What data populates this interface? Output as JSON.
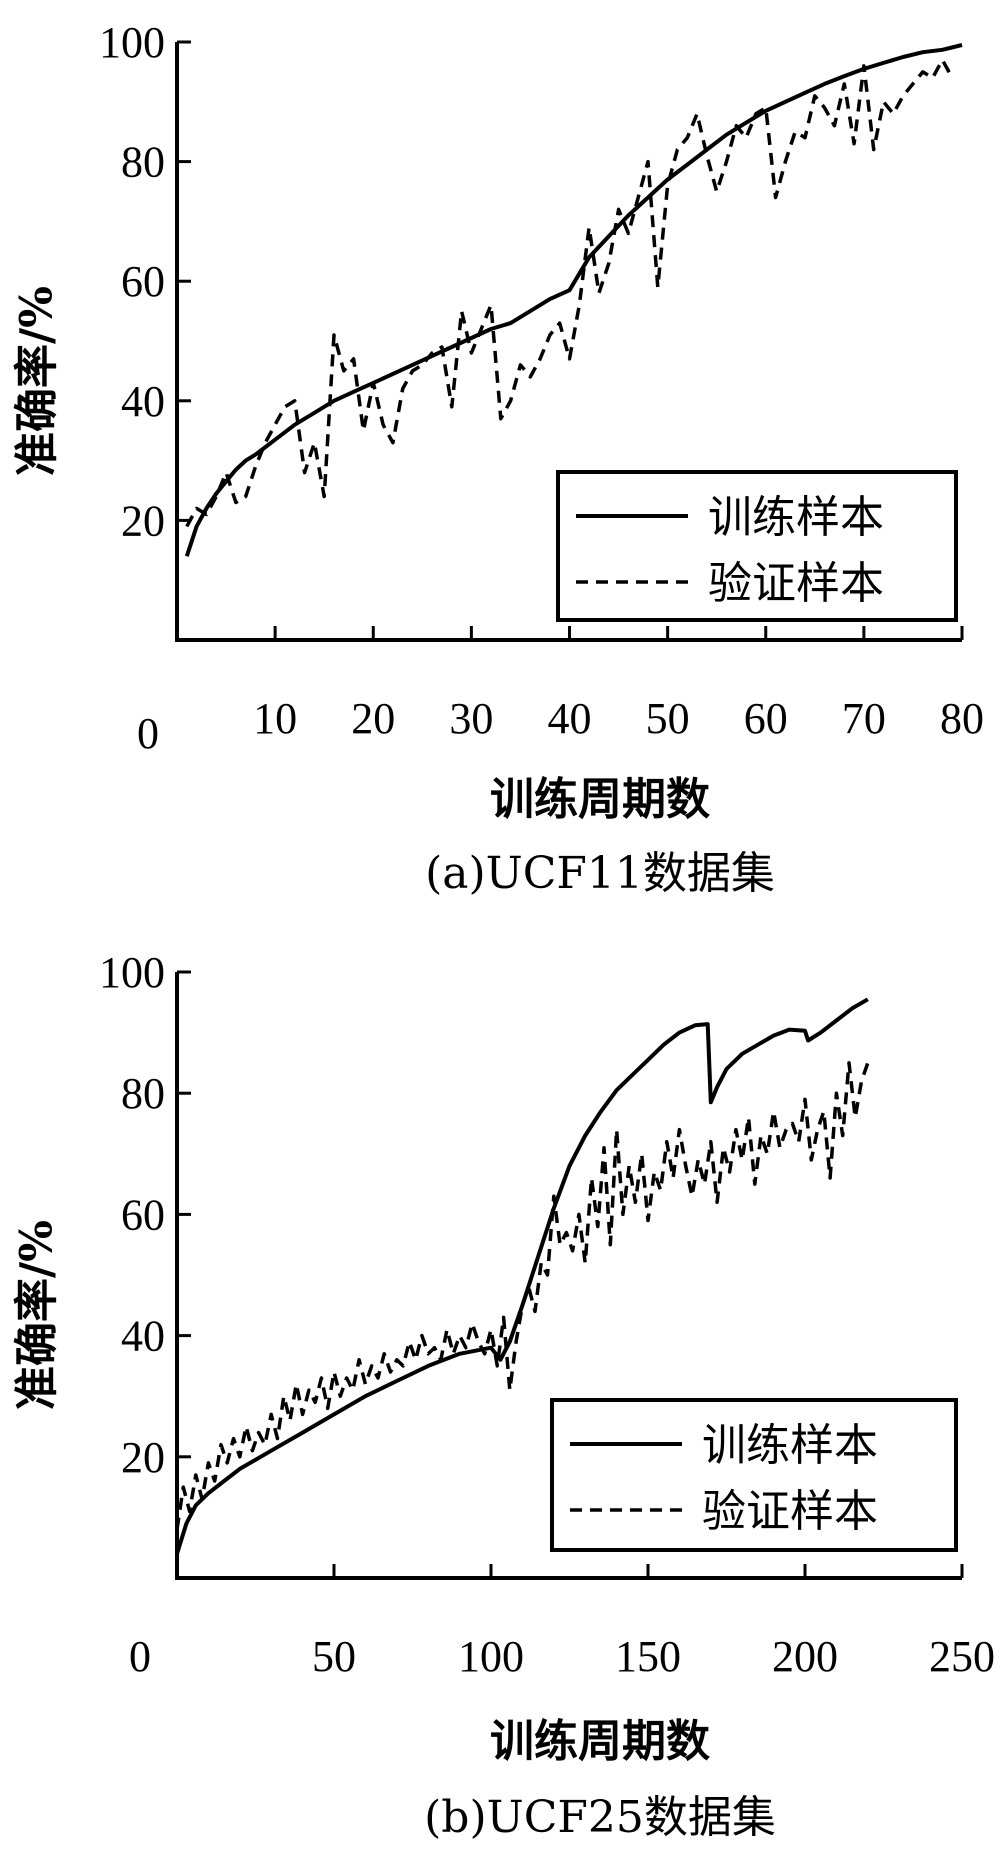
{
  "chart_data": [
    {
      "type": "line",
      "caption": "(a)UCF11数据集",
      "xlabel": "训练周期数",
      "ylabel": "准确率/%",
      "xlim": [
        0,
        80
      ],
      "ylim": [
        0,
        100
      ],
      "xticks": [
        10,
        20,
        30,
        40,
        50,
        60,
        70,
        80
      ],
      "xtick_labels": [
        "10",
        "20",
        "30",
        "40",
        "50",
        "60",
        "70",
        "80"
      ],
      "yticks": [
        20,
        40,
        60,
        80,
        100
      ],
      "ytick_labels": [
        "20",
        "40",
        "60",
        "80",
        "100"
      ],
      "origin_label": "0",
      "legend_position": "lower-right",
      "series": [
        {
          "name": "训练样本",
          "style": "solid",
          "x": [
            1,
            2,
            3,
            4,
            5,
            6,
            7,
            8,
            10,
            12,
            14,
            16,
            18,
            20,
            22,
            24,
            26,
            28,
            30,
            32,
            34,
            36,
            38,
            40,
            42,
            44,
            46,
            48,
            50,
            52,
            54,
            56,
            58,
            60,
            62,
            64,
            66,
            68,
            70,
            72,
            74,
            76,
            78,
            80
          ],
          "values": [
            14,
            19,
            22,
            24.5,
            26.5,
            28.5,
            30,
            31,
            33.5,
            36,
            38,
            40,
            41.5,
            43,
            44.5,
            46,
            47.5,
            49,
            50.5,
            52,
            53,
            55,
            57,
            58.5,
            64,
            67.5,
            71,
            74,
            77,
            79.5,
            82,
            84.5,
            86.5,
            88.5,
            90,
            91.5,
            93,
            94.3,
            95.5,
            96.5,
            97.5,
            98.3,
            98.7,
            99.5
          ]
        },
        {
          "name": "验证样本",
          "style": "dashed",
          "x": [
            1,
            2,
            3,
            4,
            5,
            6,
            7,
            8,
            9,
            10,
            11,
            12,
            13,
            14,
            15,
            16,
            17,
            18,
            19,
            20,
            21,
            22,
            23,
            24,
            25,
            26,
            27,
            28,
            29,
            30,
            31,
            32,
            33,
            34,
            35,
            36,
            37,
            38,
            39,
            40,
            41,
            42,
            43,
            44,
            45,
            46,
            47,
            48,
            49,
            50,
            51,
            52,
            53,
            54,
            55,
            56,
            57,
            58,
            59,
            60,
            61,
            62,
            63,
            64,
            65,
            66,
            67,
            68,
            69,
            70,
            71,
            72,
            73,
            74,
            75,
            76,
            77,
            78,
            79
          ],
          "values": [
            19,
            22,
            21,
            24,
            28,
            23,
            24,
            29,
            33,
            36,
            39,
            40,
            28,
            33,
            24,
            51,
            45,
            47,
            35,
            43,
            36,
            33,
            42,
            45,
            46,
            48,
            49,
            39,
            55,
            48,
            52,
            56,
            37,
            40,
            46,
            44,
            47,
            51,
            53,
            47,
            56,
            69,
            58,
            63,
            72,
            68,
            74,
            80,
            59,
            76,
            82,
            84,
            88,
            81,
            75,
            80,
            86,
            84,
            88,
            89,
            74,
            80,
            85,
            84,
            91,
            89,
            86,
            93,
            83,
            96,
            82,
            90,
            88,
            91,
            93,
            95,
            94,
            97,
            94
          ]
        }
      ]
    },
    {
      "type": "line",
      "caption": "(b)UCF25数据集",
      "xlabel": "训练周期数",
      "ylabel": "准确率/%",
      "xlim": [
        0,
        250
      ],
      "ylim": [
        0,
        100
      ],
      "xticks": [
        50,
        100,
        150,
        200,
        250
      ],
      "xtick_labels": [
        "50",
        "100",
        "150",
        "200",
        "250"
      ],
      "yticks": [
        20,
        40,
        60,
        80,
        100
      ],
      "ytick_labels": [
        "20",
        "40",
        "60",
        "80",
        "100"
      ],
      "origin_label": "0",
      "legend_position": "lower-right",
      "series": [
        {
          "name": "训练样本",
          "style": "solid",
          "x": [
            0,
            3,
            6,
            10,
            15,
            20,
            30,
            40,
            50,
            60,
            70,
            80,
            90,
            100,
            103,
            106,
            110,
            115,
            120,
            125,
            130,
            135,
            140,
            145,
            150,
            155,
            160,
            165,
            169,
            170,
            172,
            175,
            180,
            185,
            190,
            195,
            200,
            201,
            205,
            210,
            215,
            220
          ],
          "values": [
            4,
            9,
            12,
            14,
            16,
            18,
            21,
            24,
            27,
            30,
            32.5,
            35,
            37,
            38,
            36,
            39,
            45,
            53,
            61,
            68,
            73,
            77,
            80.5,
            83,
            85.5,
            88,
            90,
            91.2,
            91.4,
            78.5,
            81,
            84,
            86.5,
            88,
            89.5,
            90.5,
            90.3,
            88.7,
            90,
            92,
            94,
            95.5
          ]
        },
        {
          "name": "验证样本",
          "style": "dashed",
          "x": [
            0,
            2,
            4,
            6,
            8,
            10,
            12,
            14,
            16,
            18,
            20,
            22,
            24,
            26,
            28,
            30,
            32,
            34,
            36,
            38,
            40,
            42,
            44,
            46,
            48,
            50,
            52,
            54,
            56,
            58,
            60,
            62,
            64,
            66,
            68,
            70,
            72,
            74,
            76,
            78,
            80,
            82,
            84,
            86,
            88,
            90,
            92,
            94,
            96,
            98,
            100,
            102,
            104,
            106,
            108,
            110,
            112,
            114,
            116,
            118,
            120,
            122,
            124,
            126,
            128,
            130,
            132,
            134,
            136,
            138,
            140,
            142,
            144,
            146,
            148,
            150,
            152,
            154,
            156,
            158,
            160,
            162,
            164,
            166,
            168,
            170,
            172,
            174,
            176,
            178,
            180,
            182,
            184,
            186,
            188,
            190,
            192,
            194,
            196,
            198,
            200,
            202,
            204,
            206,
            208,
            210,
            212,
            214,
            216,
            218,
            220
          ],
          "values": [
            8,
            15,
            11,
            17,
            13,
            19,
            16,
            22,
            19,
            23,
            20,
            25,
            21,
            24,
            22,
            27,
            23,
            30,
            26,
            32,
            27,
            31,
            29,
            33,
            28,
            34,
            30,
            33,
            31,
            36,
            32,
            35,
            33,
            37,
            34,
            36,
            35,
            39,
            36,
            40,
            37,
            38,
            36,
            41,
            37,
            40,
            38,
            42,
            39,
            37,
            41,
            35,
            43,
            31,
            39,
            45,
            48,
            44,
            52,
            50,
            63,
            55,
            57,
            54,
            60,
            52,
            66,
            58,
            71,
            55,
            74,
            60,
            68,
            62,
            70,
            59,
            67,
            64,
            72,
            66,
            74,
            68,
            63,
            69,
            65,
            72,
            62,
            71,
            67,
            74,
            69,
            76,
            65,
            73,
            70,
            77,
            71,
            74,
            75,
            72,
            79,
            69,
            74,
            77,
            66,
            80,
            73,
            85,
            76,
            82,
            85
          ]
        }
      ]
    }
  ]
}
